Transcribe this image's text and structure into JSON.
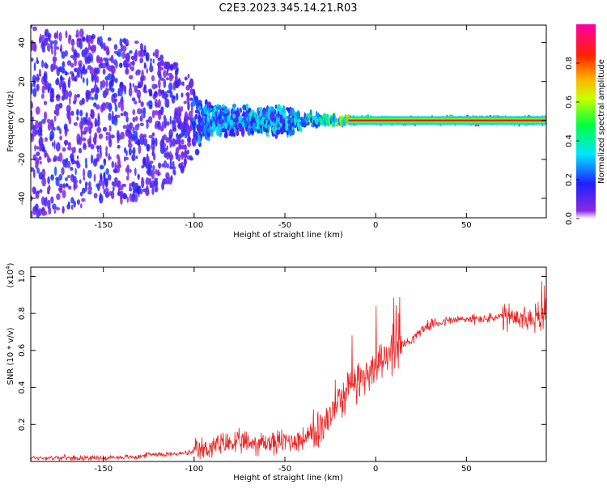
{
  "figure_title": "C2E3.2023.345.14.21.R03",
  "colors": {
    "snr_line": "#ee2222",
    "spectrum_base": "#7a22ee",
    "axis": "#000000"
  },
  "chart_data": [
    {
      "type": "heatmap",
      "name": "spectrogram",
      "xlabel": "Height of straight line (km)",
      "ylabel": "Frequency (Hz)",
      "xlim": [
        -190,
        94
      ],
      "ylim": [
        -50,
        49
      ],
      "xticks": [
        -150,
        -100,
        -50,
        0,
        50
      ],
      "yticks": [
        -40,
        -20,
        0,
        20,
        40
      ],
      "colorbar": {
        "label": "Normalized spectral amplitude",
        "range": [
          0,
          1
        ],
        "ticks": [
          "0.0",
          "0.2",
          "0.4",
          "0.6",
          "0.8"
        ],
        "tick_values": [
          0,
          0.2,
          0.4,
          0.6,
          0.8
        ],
        "colormap": "rainbow (violet to red)"
      },
      "description_points": [
        {
          "x": -190,
          "spread_hz": 49,
          "amplitude": 0.15
        },
        {
          "x": -130,
          "spread_hz": 40,
          "amplitude": 0.15
        },
        {
          "x": -110,
          "spread_hz": 30,
          "amplitude": 0.2
        },
        {
          "x": -90,
          "spread_hz": 8,
          "amplitude": 0.3
        },
        {
          "x": -50,
          "spread_hz": 8,
          "amplitude": 0.35
        },
        {
          "x": -30,
          "spread_hz": 3,
          "amplitude": 0.45
        },
        {
          "x": -10,
          "spread_hz": 1,
          "amplitude": 0.85
        },
        {
          "x": 94,
          "spread_hz": 1,
          "amplitude": 1.0
        }
      ]
    },
    {
      "type": "line",
      "name": "snr",
      "xlabel": "Height of straight line (km)",
      "ylabel": "SNR (10 * v/v)",
      "scale_label": "(x10",
      "scale_exp": "4",
      "scale_close": ")",
      "xlim": [
        -190,
        94
      ],
      "ylim": [
        0,
        1.05
      ],
      "xticks": [
        -150,
        -100,
        -50,
        0,
        50
      ],
      "yticks": [
        0.2,
        0.4,
        0.6,
        0.8,
        1.0
      ],
      "series": [
        {
          "name": "SNR",
          "x": [
            -190,
            -150,
            -130,
            -125,
            -110,
            -100,
            -90,
            -80,
            -70,
            -60,
            -50,
            -40,
            -35,
            -30,
            -25,
            -20,
            -15,
            -10,
            -5,
            0,
            5,
            10,
            15,
            20,
            25,
            30,
            40,
            50,
            60,
            70,
            80,
            90,
            94
          ],
          "values": [
            0.02,
            0.02,
            0.025,
            0.04,
            0.04,
            0.05,
            0.08,
            0.1,
            0.1,
            0.1,
            0.11,
            0.12,
            0.14,
            0.2,
            0.26,
            0.33,
            0.4,
            0.44,
            0.48,
            0.52,
            0.55,
            0.6,
            0.63,
            0.66,
            0.71,
            0.74,
            0.76,
            0.77,
            0.77,
            0.78,
            0.76,
            0.78,
            0.8
          ]
        }
      ]
    }
  ]
}
